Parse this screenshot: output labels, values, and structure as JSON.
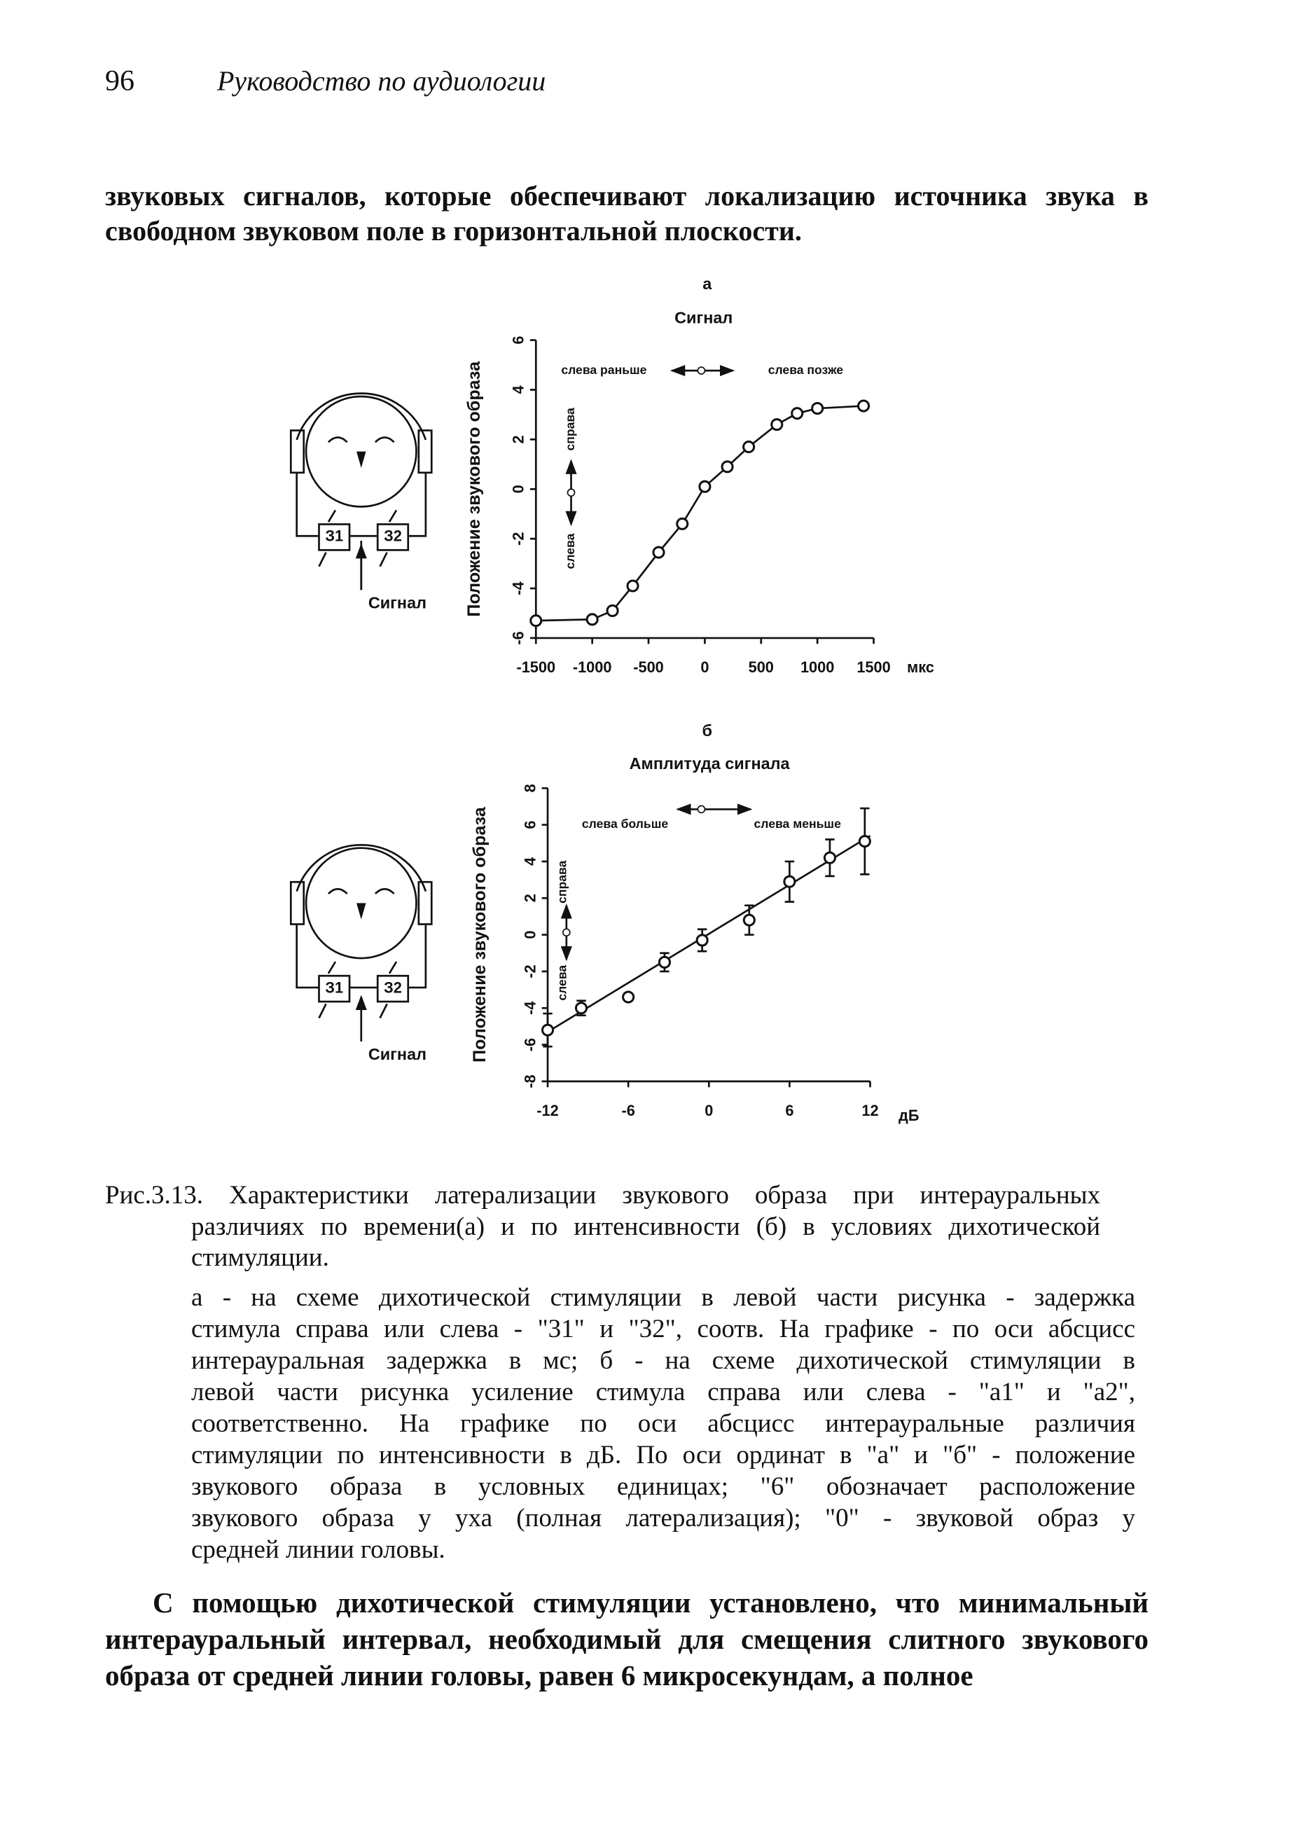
{
  "header": {
    "page_number": "96",
    "running_title": "Руководство по аудиологии"
  },
  "intro": [
    "звуковых сигналов, которые обеспечивают локализацию источника звука в",
    "свободном звуковом поле в горизонтальной плоскости."
  ],
  "diagrams": [
    {
      "left": "З1",
      "right": "З2",
      "signal": "Сигнал"
    },
    {
      "left": "З1",
      "right": "З2",
      "signal": "Сигнал"
    }
  ],
  "chart_data": [
    {
      "type": "line",
      "panel_label": "а",
      "title": "Сигнал",
      "y_label": "Положение звукового образа",
      "x_unit": "мкс",
      "annotations": {
        "left_earlier": "слева раньше",
        "left_later": "слева позже",
        "right": "справа",
        "left": "слева"
      },
      "x": [
        -1500,
        -1000,
        -820,
        -640,
        -410,
        -200,
        0,
        200,
        390,
        640,
        820,
        1000,
        1410
      ],
      "values": [
        -5.3,
        -5.25,
        -4.9,
        -3.9,
        -2.55,
        -1.4,
        0.1,
        0.9,
        1.7,
        2.6,
        3.05,
        3.25,
        3.35
      ],
      "color": "#111111",
      "xlim": [
        -1500,
        1500
      ],
      "xticks": [
        -1500,
        -1000,
        -500,
        0,
        500,
        1000,
        1500
      ],
      "ylim": [
        -6,
        6
      ],
      "yticks": [
        -6,
        -4,
        -2,
        0,
        2,
        4,
        6
      ]
    },
    {
      "type": "scatter",
      "panel_label": "б",
      "title": "Амплитуда сигнала",
      "y_label": "Положение звукового образа",
      "x_unit": "дБ",
      "annotations": {
        "left_more": "слева больше",
        "left_less": "слева меньше",
        "right": "справа",
        "left": "слева"
      },
      "x": [
        -12,
        -9.5,
        -6,
        -3.3,
        -0.5,
        3,
        6,
        9,
        11.6
      ],
      "values": [
        -5.2,
        -4.0,
        -3.4,
        -1.5,
        -0.3,
        0.8,
        2.9,
        4.2,
        5.1
      ],
      "errors": [
        0.9,
        0.4,
        0,
        0.5,
        0.6,
        0.8,
        1.1,
        1.0,
        1.8
      ],
      "trend": {
        "x": [
          -12,
          12
        ],
        "values": [
          -5.3,
          5.4
        ]
      },
      "color": "#111111",
      "xlim": [
        -12,
        12
      ],
      "xticks": [
        -12,
        -6,
        0,
        6,
        12
      ],
      "ylim": [
        -8,
        8
      ],
      "yticks": [
        -8,
        -6,
        -4,
        -2,
        0,
        2,
        4,
        6,
        8
      ]
    }
  ],
  "caption": [
    "Рис.3.13. Характеристики латерализации звукового образа при интерауральных",
    "различиях по времени(а) и по интенсивности (б) в условиях дихотической",
    "стимуляции."
  ],
  "description": [
    "а - на схеме дихотической стимуляции в левой части рисунка - задержка",
    "стимула справа или слева - \"31\"  и \"32\", соотв. На графике - по оси абсцисс",
    "интерауральная задержка в мс; б - на схеме дихотической стимуляции в",
    "левой части рисунка усиление стимула справа или слева - \"a1\" и \"a2\",",
    "соответственно. На графике по оси абсцисс интерауральные различия",
    "стимуляции по интенсивности в дБ. По оси ординат в \"а\" и \"б\" - положение",
    "звукового образа в условных единицах; \"6\" обозначает расположение",
    "звукового образа у уха (полная латерализация); \"0\" - звуковой образ у",
    "средней линии головы."
  ],
  "final": [
    "С помощью дихотической стимуляции установлено, что минимальный",
    "интерауральный интервал, необходимый для смещения слитного звукового",
    "образа от средней линии головы, равен 6 микросекундам, а полное"
  ]
}
